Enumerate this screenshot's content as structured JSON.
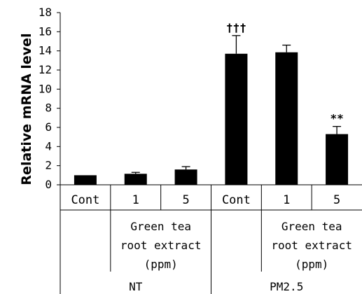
{
  "chart_data": {
    "type": "bar",
    "ylabel": "Relative mRNA level",
    "ylim": [
      0,
      18
    ],
    "yticks": [
      0,
      2,
      4,
      6,
      8,
      10,
      12,
      14,
      16,
      18
    ],
    "categories": [
      "Cont",
      "1",
      "5",
      "Cont",
      "1",
      "5"
    ],
    "values": [
      1.0,
      1.15,
      1.6,
      13.7,
      13.85,
      5.3
    ],
    "errors": [
      0.0,
      0.15,
      0.3,
      1.9,
      0.75,
      0.8
    ],
    "annotations": [
      "",
      "",
      "",
      "†††",
      "",
      "**"
    ],
    "bar_color": "#000000",
    "sublabels": [
      {
        "lines": [
          "Green tea",
          "root extract",
          "(ppm)"
        ]
      },
      {
        "lines": [
          "Green tea",
          "root extract",
          "(ppm)"
        ]
      }
    ],
    "groups": [
      "NT",
      "PM2.5"
    ]
  }
}
